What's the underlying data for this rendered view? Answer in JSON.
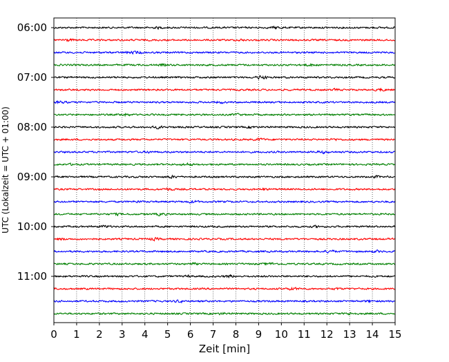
{
  "chart_data": {
    "type": "line",
    "title": "",
    "xlabel": "Zeit  [min]",
    "ylabel": "UTC (Lokalzeit = UTC + 01:00)",
    "xlim": [
      0,
      15
    ],
    "x_ticks": [
      "0",
      "1",
      "2",
      "3",
      "4",
      "5",
      "6",
      "7",
      "8",
      "9",
      "10",
      "11",
      "12",
      "13",
      "14",
      "15"
    ],
    "y_tick_labels": [
      "06:00",
      "07:00",
      "08:00",
      "09:00",
      "10:00",
      "11:00"
    ],
    "traces_per_hour": 4,
    "trace_minutes_per_row": 15,
    "start_time": "06:00",
    "end_time": "12:00",
    "grid": "vertical-dotted",
    "trace_colors": [
      "#000000",
      "#ff0000",
      "#0000ff",
      "#008000"
    ],
    "series": [
      {
        "start": "06:00",
        "color": "#000000"
      },
      {
        "start": "06:15",
        "color": "#ff0000"
      },
      {
        "start": "06:30",
        "color": "#0000ff"
      },
      {
        "start": "06:45",
        "color": "#008000"
      },
      {
        "start": "07:00",
        "color": "#000000"
      },
      {
        "start": "07:15",
        "color": "#ff0000"
      },
      {
        "start": "07:30",
        "color": "#0000ff"
      },
      {
        "start": "07:45",
        "color": "#008000"
      },
      {
        "start": "08:00",
        "color": "#000000"
      },
      {
        "start": "08:15",
        "color": "#ff0000"
      },
      {
        "start": "08:30",
        "color": "#0000ff"
      },
      {
        "start": "08:45",
        "color": "#008000"
      },
      {
        "start": "09:00",
        "color": "#000000"
      },
      {
        "start": "09:15",
        "color": "#ff0000"
      },
      {
        "start": "09:30",
        "color": "#0000ff"
      },
      {
        "start": "09:45",
        "color": "#008000"
      },
      {
        "start": "10:00",
        "color": "#000000"
      },
      {
        "start": "10:15",
        "color": "#ff0000"
      },
      {
        "start": "10:30",
        "color": "#0000ff"
      },
      {
        "start": "10:45",
        "color": "#008000"
      },
      {
        "start": "11:00",
        "color": "#000000"
      },
      {
        "start": "11:15",
        "color": "#ff0000"
      },
      {
        "start": "11:30",
        "color": "#0000ff"
      },
      {
        "start": "11:45",
        "color": "#008000"
      }
    ]
  }
}
